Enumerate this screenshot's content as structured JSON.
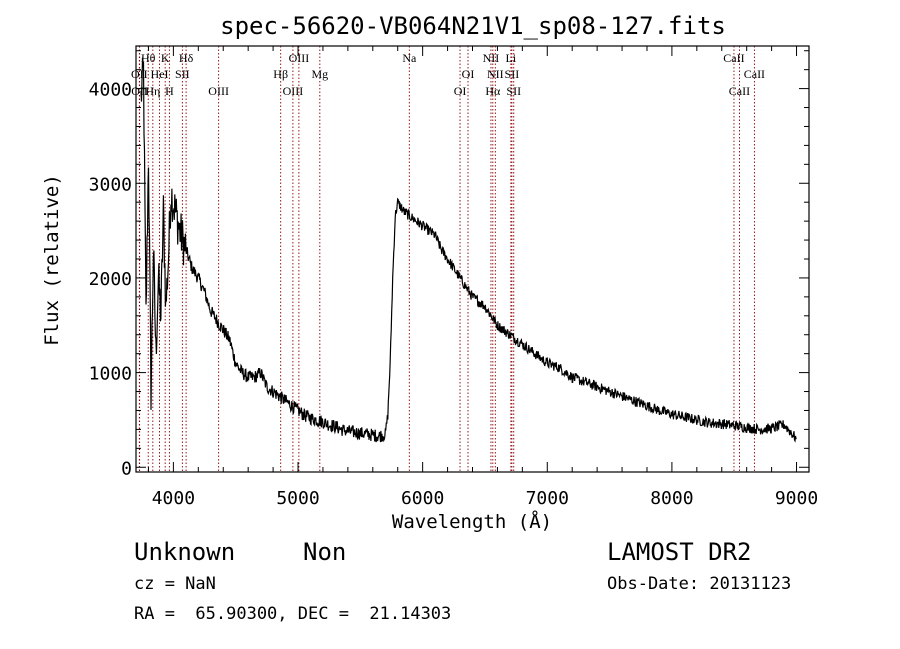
{
  "chart_data": {
    "type": "line",
    "title": "spec-56620-VB064N21V1_sp08-127.fits",
    "xlabel": "Wavelength (Å)",
    "ylabel": "Flux (relative)",
    "xlim": [
      3700,
      9100
    ],
    "ylim": [
      -50,
      4450
    ],
    "xticks": [
      4000,
      5000,
      6000,
      7000,
      8000,
      9000
    ],
    "yticks": [
      0,
      1000,
      2000,
      3000,
      4000
    ],
    "grid": false,
    "line_color": "#000000",
    "marker_color": "#8b0000",
    "series": [
      {
        "x": [
          3740,
          3760,
          3780,
          3800,
          3820,
          3840,
          3860,
          3880,
          3900,
          3920,
          3940,
          3960,
          3980,
          4000,
          4050,
          4100,
          4150,
          4200,
          4250,
          4300,
          4350,
          4400,
          4450,
          4500,
          4550,
          4600,
          4650,
          4700,
          4750,
          4800,
          4850,
          4900,
          4950,
          5000,
          5050,
          5100,
          5150,
          5200,
          5250,
          5300,
          5350,
          5400,
          5450,
          5500,
          5550,
          5600,
          5650,
          5700,
          5720,
          5740,
          5760,
          5780,
          5800,
          5850,
          5900,
          5950,
          6000,
          6050,
          6100,
          6150,
          6200,
          6250,
          6300,
          6350,
          6400,
          6450,
          6500,
          6550,
          6600,
          6650,
          6700,
          6750,
          6800,
          6900,
          7000,
          7100,
          7200,
          7300,
          7400,
          7500,
          7600,
          7700,
          7800,
          7900,
          8000,
          8100,
          8200,
          8300,
          8400,
          8500,
          8600,
          8700,
          8800,
          8900,
          9000
        ],
        "y": [
          3900,
          4200,
          1600,
          3300,
          800,
          2300,
          1200,
          2000,
          1600,
          2700,
          1700,
          2200,
          2900,
          2800,
          2500,
          2300,
          2100,
          2000,
          1850,
          1650,
          1550,
          1450,
          1350,
          1100,
          1000,
          950,
          950,
          1000,
          850,
          800,
          750,
          700,
          650,
          600,
          550,
          520,
          500,
          480,
          450,
          430,
          400,
          380,
          370,
          360,
          350,
          340,
          330,
          350,
          550,
          1100,
          2000,
          2650,
          2800,
          2700,
          2650,
          2600,
          2550,
          2500,
          2450,
          2300,
          2200,
          2100,
          2000,
          1900,
          1800,
          1750,
          1700,
          1600,
          1500,
          1450,
          1400,
          1350,
          1300,
          1200,
          1100,
          1050,
          950,
          900,
          850,
          800,
          750,
          700,
          650,
          600,
          560,
          530,
          500,
          470,
          460,
          440,
          420,
          400,
          410,
          450,
          300
        ]
      }
    ],
    "lines": [
      {
        "label": "Hθ",
        "wavelength": 3798,
        "row": 1
      },
      {
        "label": "K",
        "wavelength": 3934,
        "row": 1
      },
      {
        "label": "Hδ",
        "wavelength": 4102,
        "row": 1
      },
      {
        "label": "OIII",
        "wavelength": 5007,
        "row": 1
      },
      {
        "label": "Na",
        "wavelength": 5893,
        "row": 1
      },
      {
        "label": "NII",
        "wavelength": 6548,
        "row": 1
      },
      {
        "label": "Li",
        "wavelength": 6708,
        "row": 1
      },
      {
        "label": "CaII",
        "wavelength": 8498,
        "row": 1
      },
      {
        "label": "OII",
        "wavelength": 3727,
        "row": 2
      },
      {
        "label": "HeI",
        "wavelength": 3889,
        "row": 2
      },
      {
        "label": "SII",
        "wavelength": 4072,
        "row": 2
      },
      {
        "label": "Hβ",
        "wavelength": 4861,
        "row": 2
      },
      {
        "label": "Mg",
        "wavelength": 5175,
        "row": 2
      },
      {
        "label": "OI",
        "wavelength": 6364,
        "row": 2
      },
      {
        "label": "NII",
        "wavelength": 6583,
        "row": 2
      },
      {
        "label": "SII",
        "wavelength": 6716,
        "row": 2
      },
      {
        "label": "CaII",
        "wavelength": 8662,
        "row": 2
      },
      {
        "label": "OII",
        "wavelength": 3729,
        "row": 3
      },
      {
        "label": "Hη",
        "wavelength": 3835,
        "row": 3
      },
      {
        "label": "H",
        "wavelength": 3968,
        "row": 3
      },
      {
        "label": "OIII",
        "wavelength": 4363,
        "row": 3
      },
      {
        "label": "OIII",
        "wavelength": 4959,
        "row": 3
      },
      {
        "label": "OI",
        "wavelength": 6300,
        "row": 3
      },
      {
        "label": "Hα",
        "wavelength": 6563,
        "row": 3
      },
      {
        "label": "SII",
        "wavelength": 6731,
        "row": 3
      },
      {
        "label": "CaII",
        "wavelength": 8542,
        "row": 3
      }
    ]
  },
  "info": {
    "object_class": "Unknown",
    "subclass": "Non",
    "survey": "LAMOST DR2",
    "cz": "cz = NaN",
    "obs_date": "Obs-Date: 20131123",
    "coords": "RA =  65.90300, DEC =  21.14303"
  }
}
